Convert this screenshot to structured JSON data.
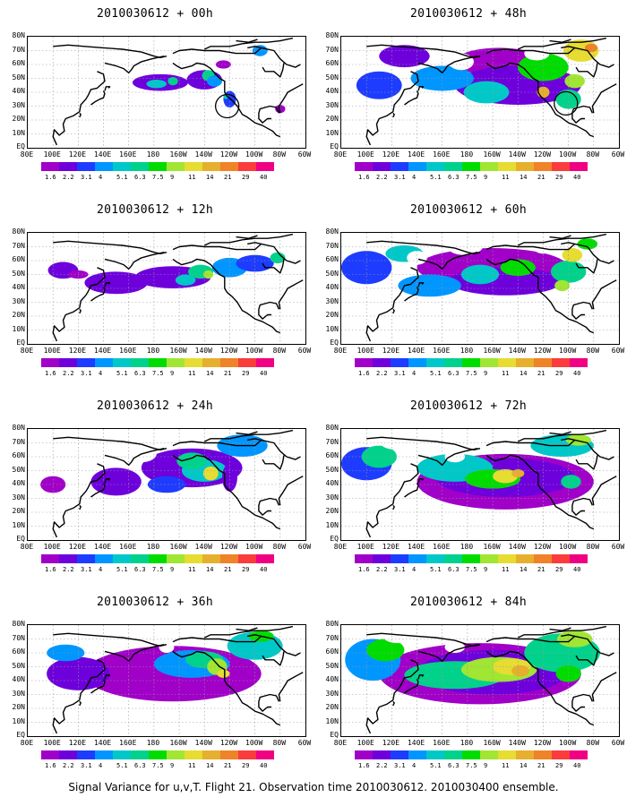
{
  "panels": [
    {
      "title": "2010030612 + 00h",
      "lead": "00h",
      "circles": [
        {
          "lon": -122,
          "lat": 30
        }
      ]
    },
    {
      "title": "2010030612 + 48h",
      "lead": "48h",
      "circles": [
        {
          "lon": -102,
          "lat": 32
        }
      ]
    },
    {
      "title": "2010030612 + 12h",
      "lead": "12h",
      "circles": []
    },
    {
      "title": "2010030612 + 60h",
      "lead": "60h",
      "circles": []
    },
    {
      "title": "2010030612 + 24h",
      "lead": "24h",
      "circles": []
    },
    {
      "title": "2010030612 + 72h",
      "lead": "72h",
      "circles": []
    },
    {
      "title": "2010030612 + 36h",
      "lead": "36h",
      "circles": []
    },
    {
      "title": "2010030612 + 84h",
      "lead": "84h",
      "circles": []
    }
  ],
  "x_ticks": [
    "80E",
    "100E",
    "120E",
    "140E",
    "160E",
    "180",
    "160W",
    "140W",
    "120W",
    "100W",
    "80W",
    "60W"
  ],
  "y_ticks": [
    "80N",
    "70N",
    "60N",
    "50N",
    "40N",
    "30N",
    "20N",
    "10N",
    "EQ"
  ],
  "colorbar": {
    "labels": [
      "1.6",
      "2.2",
      "3.1",
      "4",
      "5.1",
      "6.3",
      "7.5",
      "9",
      "11",
      "14",
      "21",
      "29",
      "40"
    ],
    "colors": [
      "#a000c8",
      "#6e00dc",
      "#1e3cff",
      "#0096ff",
      "#00c8c8",
      "#00d28c",
      "#00dc00",
      "#a0e632",
      "#e6dc32",
      "#e6af2d",
      "#f08228",
      "#fa3c3c",
      "#f00082"
    ]
  },
  "chart_data": {
    "type": "map",
    "projection": "lat-lon",
    "lon_range": [
      80,
      300
    ],
    "lat_range": [
      0,
      80
    ],
    "grid": true,
    "field": "Signal Variance for u,v,T",
    "contour_levels": [
      1.6,
      2.2,
      3.1,
      4,
      5.1,
      6.3,
      7.5,
      9,
      11,
      14,
      21,
      29,
      40
    ]
  },
  "caption": "Signal Variance for u,v,T. Flight 21. Observation time 2010030612. 2010030400 ensemble."
}
